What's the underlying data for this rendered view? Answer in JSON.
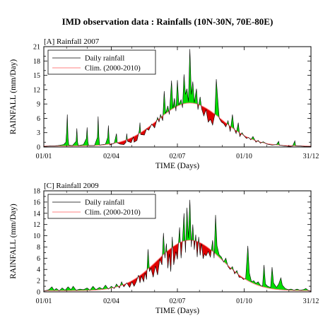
{
  "figure": {
    "title": "IMD observation data : Rainfalls (10N-30N, 70E-80E)"
  },
  "colors": {
    "above_clim": "#00dd00",
    "below_clim": "#e00000",
    "daily_line": "#000000",
    "clim_line": "#ff8080"
  },
  "chart_data": [
    {
      "type": "area",
      "panel_label": "[A] Rainfall 2007",
      "xlabel": "TIME (Days)",
      "ylabel": "RAINFALL (mm/Day)",
      "xlim": [
        1,
        365
      ],
      "ylim": [
        0,
        21
      ],
      "yticks": [
        0,
        1,
        3,
        4,
        6,
        7,
        9,
        10,
        12,
        13,
        15,
        16,
        18,
        19,
        21
      ],
      "yticks_labeled": [
        0,
        3,
        6,
        9,
        12,
        15,
        18,
        21
      ],
      "xticks": [
        {
          "day": 1,
          "label": "01/01"
        },
        {
          "day": 93,
          "label": "02/04"
        },
        {
          "day": 183,
          "label": "02/07"
        },
        {
          "day": 274,
          "label": "01/10"
        },
        {
          "day": 365,
          "label": "31/12"
        }
      ],
      "legend": {
        "position": "top-left",
        "entries": [
          "Daily rainfall",
          "Clim. (2000-2010)"
        ]
      },
      "clim_peak": {
        "day": 200,
        "value": 9.2
      },
      "daily_rainfall": [
        [
          1,
          0.1
        ],
        [
          10,
          0.2
        ],
        [
          20,
          0.3
        ],
        [
          28,
          0.5
        ],
        [
          31,
          1.0
        ],
        [
          32,
          3.0
        ],
        [
          33,
          6.8
        ],
        [
          34,
          2.0
        ],
        [
          35,
          0.4
        ],
        [
          40,
          0.3
        ],
        [
          45,
          1.2
        ],
        [
          46,
          3.9
        ],
        [
          47,
          1.0
        ],
        [
          48,
          0.3
        ],
        [
          55,
          0.5
        ],
        [
          59,
          1.8
        ],
        [
          60,
          4.1
        ],
        [
          61,
          1.2
        ],
        [
          62,
          0.3
        ],
        [
          70,
          0.3
        ],
        [
          74,
          2.0
        ],
        [
          75,
          6.4
        ],
        [
          76,
          2.2
        ],
        [
          77,
          0.4
        ],
        [
          85,
          0.6
        ],
        [
          88,
          2.0
        ],
        [
          89,
          4.5
        ],
        [
          90,
          1.6
        ],
        [
          91,
          0.4
        ],
        [
          97,
          0.8
        ],
        [
          100,
          2.8
        ],
        [
          101,
          0.9
        ],
        [
          105,
          0.6
        ],
        [
          110,
          0.5
        ],
        [
          113,
          1.0
        ],
        [
          114,
          2.8
        ],
        [
          115,
          1.2
        ],
        [
          120,
          0.9
        ],
        [
          123,
          2.1
        ],
        [
          124,
          1.0
        ],
        [
          128,
          1.4
        ],
        [
          131,
          3.4
        ],
        [
          132,
          5.1
        ],
        [
          133,
          2.6
        ],
        [
          138,
          2.5
        ],
        [
          141,
          3.8
        ],
        [
          144,
          3.5
        ],
        [
          148,
          4.8
        ],
        [
          152,
          4.0
        ],
        [
          156,
          6.2
        ],
        [
          158,
          5.2
        ],
        [
          160,
          6.8
        ],
        [
          163,
          5.5
        ],
        [
          165,
          11.7
        ],
        [
          167,
          7.0
        ],
        [
          170,
          8.6
        ],
        [
          172,
          6.8
        ],
        [
          175,
          13.9
        ],
        [
          177,
          8.1
        ],
        [
          179,
          10.2
        ],
        [
          181,
          7.5
        ],
        [
          183,
          14.0
        ],
        [
          185,
          8.8
        ],
        [
          188,
          9.9
        ],
        [
          190,
          8.2
        ],
        [
          192,
          15.2
        ],
        [
          194,
          11.0
        ],
        [
          196,
          12.2
        ],
        [
          198,
          9.5
        ],
        [
          200,
          20.5
        ],
        [
          202,
          11.0
        ],
        [
          204,
          13.7
        ],
        [
          206,
          9.3
        ],
        [
          209,
          12.2
        ],
        [
          211,
          7.8
        ],
        [
          214,
          10.5
        ],
        [
          216,
          8.0
        ],
        [
          219,
          6.5
        ],
        [
          222,
          7.8
        ],
        [
          225,
          5.2
        ],
        [
          228,
          5.8
        ],
        [
          231,
          4.6
        ],
        [
          234,
          6.8
        ],
        [
          236,
          14.2
        ],
        [
          238,
          10.0
        ],
        [
          240,
          6.0
        ],
        [
          243,
          5.2
        ],
        [
          246,
          4.9
        ],
        [
          249,
          4.2
        ],
        [
          252,
          5.5
        ],
        [
          255,
          3.2
        ],
        [
          258,
          6.8
        ],
        [
          260,
          4.0
        ],
        [
          263,
          2.8
        ],
        [
          266,
          5.1
        ],
        [
          268,
          2.2
        ],
        [
          271,
          3.0
        ],
        [
          274,
          2.3
        ],
        [
          277,
          1.8
        ],
        [
          280,
          2.0
        ],
        [
          283,
          1.5
        ],
        [
          286,
          2.2
        ],
        [
          290,
          1.0
        ],
        [
          293,
          1.4
        ],
        [
          296,
          0.8
        ],
        [
          300,
          1.1
        ],
        [
          305,
          0.6
        ],
        [
          312,
          0.4
        ],
        [
          318,
          0.5
        ],
        [
          321,
          1.2
        ],
        [
          322,
          0.4
        ],
        [
          330,
          0.2
        ],
        [
          336,
          0.1
        ],
        [
          340,
          0.2
        ],
        [
          343,
          1.3
        ],
        [
          344,
          0.3
        ],
        [
          350,
          0.2
        ],
        [
          358,
          0.1
        ],
        [
          365,
          0.1
        ]
      ]
    },
    {
      "type": "area",
      "panel_label": "[C] Rainfall 2009",
      "xlabel": "TIME (Days)",
      "ylabel": "RAINFALL (mm/Day)",
      "xlim": [
        1,
        365
      ],
      "ylim": [
        0,
        18
      ],
      "yticks": [
        0,
        1,
        2,
        3,
        4,
        5,
        6,
        7,
        8,
        9,
        10,
        11,
        12,
        13,
        14,
        15,
        16,
        17,
        18
      ],
      "yticks_labeled": [
        0,
        2,
        4,
        6,
        8,
        10,
        12,
        14,
        16,
        18
      ],
      "xticks": [
        {
          "day": 1,
          "label": "01/01"
        },
        {
          "day": 93,
          "label": "02/04"
        },
        {
          "day": 183,
          "label": "02/07"
        },
        {
          "day": 274,
          "label": "01/10"
        },
        {
          "day": 365,
          "label": "31/12"
        }
      ],
      "legend": {
        "position": "top-left",
        "entries": [
          "Daily rainfall",
          "Clim. (2000-2010)"
        ]
      },
      "clim_peak": {
        "day": 200,
        "value": 9.2
      },
      "daily_rainfall": [
        [
          1,
          0.1
        ],
        [
          8,
          0.4
        ],
        [
          12,
          0.9
        ],
        [
          15,
          0.3
        ],
        [
          18,
          0.6
        ],
        [
          22,
          0.2
        ],
        [
          26,
          0.7
        ],
        [
          30,
          0.3
        ],
        [
          34,
          0.9
        ],
        [
          38,
          0.4
        ],
        [
          41,
          1.0
        ],
        [
          45,
          0.3
        ],
        [
          50,
          0.5
        ],
        [
          55,
          0.4
        ],
        [
          60,
          0.7
        ],
        [
          64,
          0.3
        ],
        [
          68,
          1.0
        ],
        [
          72,
          0.4
        ],
        [
          77,
          0.8
        ],
        [
          81,
          0.5
        ],
        [
          85,
          1.2
        ],
        [
          89,
          0.5
        ],
        [
          93,
          1.0
        ],
        [
          97,
          0.6
        ],
        [
          100,
          1.4
        ],
        [
          104,
          0.7
        ],
        [
          107,
          1.8
        ],
        [
          110,
          0.9
        ],
        [
          114,
          1.6
        ],
        [
          118,
          0.8
        ],
        [
          121,
          1.8
        ],
        [
          124,
          1.0
        ],
        [
          127,
          1.8
        ],
        [
          130,
          3.0
        ],
        [
          132,
          1.6
        ],
        [
          134,
          2.8
        ],
        [
          137,
          1.8
        ],
        [
          139,
          3.4
        ],
        [
          141,
          2.2
        ],
        [
          143,
          7.6
        ],
        [
          145,
          3.6
        ],
        [
          147,
          4.2
        ],
        [
          150,
          2.6
        ],
        [
          153,
          4.6
        ],
        [
          156,
          3.0
        ],
        [
          159,
          5.8
        ],
        [
          162,
          4.8
        ],
        [
          164,
          10.5
        ],
        [
          166,
          6.0
        ],
        [
          168,
          8.6
        ],
        [
          170,
          4.2
        ],
        [
          172,
          6.8
        ],
        [
          174,
          3.6
        ],
        [
          176,
          9.8
        ],
        [
          178,
          4.8
        ],
        [
          181,
          7.2
        ],
        [
          183,
          5.8
        ],
        [
          186,
          11.5
        ],
        [
          188,
          6.0
        ],
        [
          190,
          9.2
        ],
        [
          192,
          14.0
        ],
        [
          194,
          7.0
        ],
        [
          196,
          15.0
        ],
        [
          198,
          9.6
        ],
        [
          200,
          16.4
        ],
        [
          202,
          8.0
        ],
        [
          204,
          12.0
        ],
        [
          206,
          7.5
        ],
        [
          208,
          10.2
        ],
        [
          210,
          6.2
        ],
        [
          212,
          9.8
        ],
        [
          214,
          6.5
        ],
        [
          216,
          8.6
        ],
        [
          218,
          5.9
        ],
        [
          220,
          6.8
        ],
        [
          222,
          6.4
        ],
        [
          225,
          7.2
        ],
        [
          228,
          6.2
        ],
        [
          231,
          9.2
        ],
        [
          233,
          6.0
        ],
        [
          235,
          13.7
        ],
        [
          237,
          8.2
        ],
        [
          240,
          6.6
        ],
        [
          243,
          6.2
        ],
        [
          246,
          5.3
        ],
        [
          249,
          6.0
        ],
        [
          252,
          4.5
        ],
        [
          255,
          4.0
        ],
        [
          258,
          4.5
        ],
        [
          261,
          3.2
        ],
        [
          264,
          3.8
        ],
        [
          267,
          2.6
        ],
        [
          270,
          2.6
        ],
        [
          273,
          2.2
        ],
        [
          276,
          2.4
        ],
        [
          279,
          8.2
        ],
        [
          281,
          3.4
        ],
        [
          284,
          1.8
        ],
        [
          287,
          2.0
        ],
        [
          290,
          1.5
        ],
        [
          293,
          1.8
        ],
        [
          296,
          1.2
        ],
        [
          299,
          1.0
        ],
        [
          301,
          4.8
        ],
        [
          303,
          1.4
        ],
        [
          306,
          1.0
        ],
        [
          310,
          0.8
        ],
        [
          312,
          4.4
        ],
        [
          314,
          1.6
        ],
        [
          318,
          0.8
        ],
        [
          321,
          1.4
        ],
        [
          324,
          2.5
        ],
        [
          326,
          1.2
        ],
        [
          330,
          0.6
        ],
        [
          334,
          0.4
        ],
        [
          338,
          0.5
        ],
        [
          342,
          0.3
        ],
        [
          346,
          0.5
        ],
        [
          350,
          0.3
        ],
        [
          355,
          0.4
        ],
        [
          358,
          0.6
        ],
        [
          362,
          0.2
        ],
        [
          365,
          0.1
        ]
      ]
    }
  ]
}
